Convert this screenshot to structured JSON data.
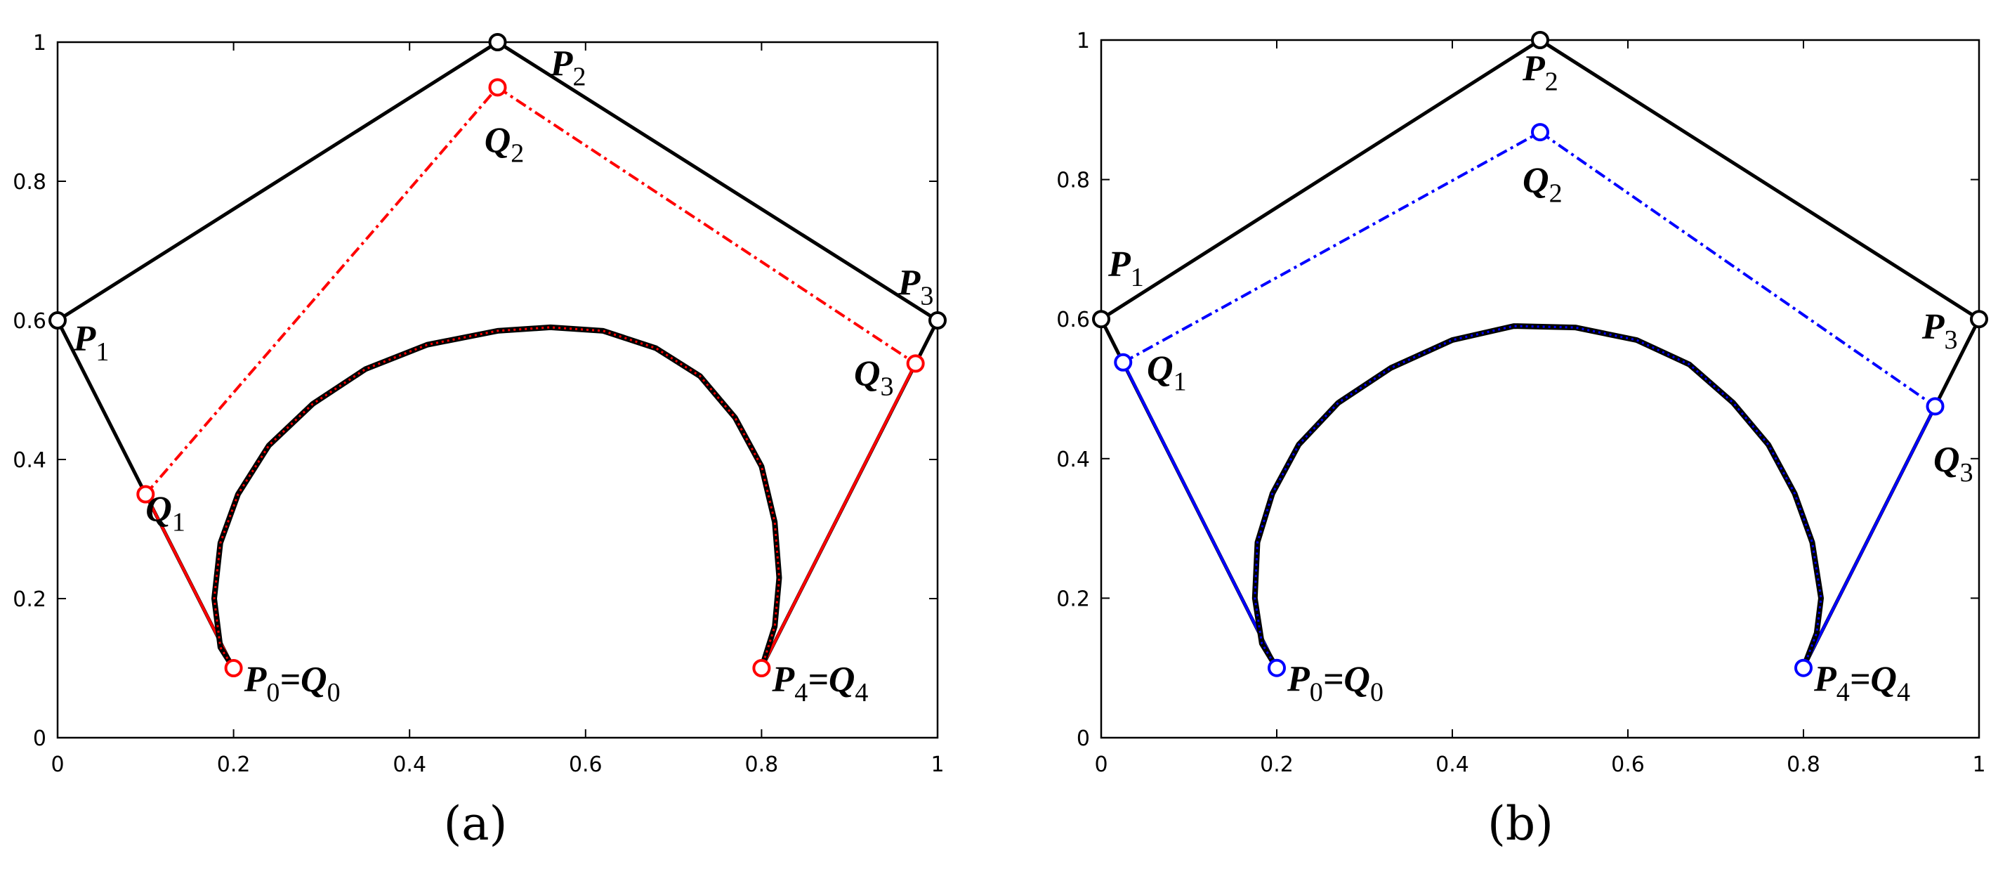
{
  "chart_data": [
    {
      "type": "line",
      "caption": "(a)",
      "xlim": [
        0,
        1
      ],
      "ylim": [
        0,
        1
      ],
      "x_ticks": [
        "0",
        "0.2",
        "0.4",
        "0.6",
        "0.8",
        "1"
      ],
      "y_ticks": [
        "0",
        "0.2",
        "0.4",
        "0.6",
        "0.8",
        "1"
      ],
      "grid": false,
      "accent_color": "#ff0000",
      "control_polygon_P": {
        "color": "#000000",
        "points": [
          {
            "name": "P0",
            "x": 0.2,
            "y": 0.1
          },
          {
            "name": "P1",
            "x": 0.0,
            "y": 0.6
          },
          {
            "name": "P2",
            "x": 0.5,
            "y": 1.0
          },
          {
            "name": "P3",
            "x": 1.0,
            "y": 0.6
          },
          {
            "name": "P4",
            "x": 0.8,
            "y": 0.1
          }
        ]
      },
      "control_polygon_Q": {
        "color": "#ff0000",
        "points": [
          {
            "name": "Q0",
            "x": 0.2,
            "y": 0.1
          },
          {
            "name": "Q1",
            "x": 0.1,
            "y": 0.35
          },
          {
            "name": "Q2",
            "x": 0.5,
            "y": 0.935
          },
          {
            "name": "Q3",
            "x": 0.975,
            "y": 0.538
          },
          {
            "name": "Q4",
            "x": 0.8,
            "y": 0.1
          }
        ]
      },
      "curve": {
        "color": "#000000",
        "overlay_color": "#ff0000",
        "points": [
          [
            0.2,
            0.1
          ],
          [
            0.185,
            0.13
          ],
          [
            0.178,
            0.2
          ],
          [
            0.185,
            0.28
          ],
          [
            0.205,
            0.35
          ],
          [
            0.24,
            0.42
          ],
          [
            0.29,
            0.48
          ],
          [
            0.35,
            0.53
          ],
          [
            0.42,
            0.565
          ],
          [
            0.5,
            0.585
          ],
          [
            0.56,
            0.59
          ],
          [
            0.62,
            0.585
          ],
          [
            0.68,
            0.56
          ],
          [
            0.73,
            0.52
          ],
          [
            0.77,
            0.46
          ],
          [
            0.8,
            0.39
          ],
          [
            0.815,
            0.31
          ],
          [
            0.82,
            0.23
          ],
          [
            0.815,
            0.16
          ],
          [
            0.8,
            0.1
          ]
        ]
      },
      "labels": [
        {
          "main": "P",
          "sub": "0",
          "tail": "=Q",
          "tail_sub": "0",
          "x": 0.212,
          "y": 0.085
        },
        {
          "main": "P",
          "sub": "1",
          "x": 0.018,
          "y": 0.575
        },
        {
          "main": "P",
          "sub": "2",
          "x": 0.56,
          "y": 0.97
        },
        {
          "main": "P",
          "sub": "3",
          "x": 0.955,
          "y": 0.655
        },
        {
          "main": "P",
          "sub": "4",
          "tail": "=Q",
          "tail_sub": "4",
          "x": 0.812,
          "y": 0.085
        },
        {
          "main": "Q",
          "sub": "1",
          "x": 0.1,
          "y": 0.33
        },
        {
          "main": "Q",
          "sub": "2",
          "x": 0.485,
          "y": 0.86
        },
        {
          "main": "Q",
          "sub": "3",
          "x": 0.905,
          "y": 0.525
        }
      ]
    },
    {
      "type": "line",
      "caption": "(b)",
      "xlim": [
        0,
        1
      ],
      "ylim": [
        0,
        1
      ],
      "x_ticks": [
        "0",
        "0.2",
        "0.4",
        "0.6",
        "0.8",
        "1"
      ],
      "y_ticks": [
        "0",
        "0.2",
        "0.4",
        "0.6",
        "0.8",
        "1"
      ],
      "grid": false,
      "accent_color": "#0000ff",
      "control_polygon_P": {
        "color": "#000000",
        "points": [
          {
            "name": "P0",
            "x": 0.2,
            "y": 0.1
          },
          {
            "name": "P1",
            "x": 0.0,
            "y": 0.6
          },
          {
            "name": "P2",
            "x": 0.5,
            "y": 1.0
          },
          {
            "name": "P3",
            "x": 1.0,
            "y": 0.6
          },
          {
            "name": "P4",
            "x": 0.8,
            "y": 0.1
          }
        ]
      },
      "control_polygon_Q": {
        "color": "#0000ff",
        "points": [
          {
            "name": "Q0",
            "x": 0.2,
            "y": 0.1
          },
          {
            "name": "Q1",
            "x": 0.025,
            "y": 0.538
          },
          {
            "name": "Q2",
            "x": 0.5,
            "y": 0.868
          },
          {
            "name": "Q3",
            "x": 0.95,
            "y": 0.475
          },
          {
            "name": "Q4",
            "x": 0.8,
            "y": 0.1
          }
        ]
      },
      "curve": {
        "color": "#000000",
        "overlay_color": "#0000ff",
        "points": [
          [
            0.2,
            0.1
          ],
          [
            0.183,
            0.135
          ],
          [
            0.175,
            0.2
          ],
          [
            0.178,
            0.28
          ],
          [
            0.195,
            0.35
          ],
          [
            0.225,
            0.42
          ],
          [
            0.27,
            0.48
          ],
          [
            0.33,
            0.53
          ],
          [
            0.4,
            0.57
          ],
          [
            0.47,
            0.59
          ],
          [
            0.54,
            0.588
          ],
          [
            0.61,
            0.57
          ],
          [
            0.67,
            0.535
          ],
          [
            0.72,
            0.48
          ],
          [
            0.76,
            0.42
          ],
          [
            0.79,
            0.35
          ],
          [
            0.81,
            0.28
          ],
          [
            0.82,
            0.2
          ],
          [
            0.815,
            0.15
          ],
          [
            0.8,
            0.1
          ]
        ]
      },
      "labels": [
        {
          "main": "P",
          "sub": "0",
          "tail": "=Q",
          "tail_sub": "0",
          "x": 0.212,
          "y": 0.085
        },
        {
          "main": "P",
          "sub": "1",
          "x": 0.008,
          "y": 0.68
        },
        {
          "main": "P",
          "sub": "2",
          "x": 0.48,
          "y": 0.96
        },
        {
          "main": "P",
          "sub": "3",
          "x": 0.935,
          "y": 0.59
        },
        {
          "main": "P",
          "sub": "4",
          "tail": "=Q",
          "tail_sub": "4",
          "x": 0.812,
          "y": 0.085
        },
        {
          "main": "Q",
          "sub": "1",
          "x": 0.052,
          "y": 0.53
        },
        {
          "main": "Q",
          "sub": "2",
          "x": 0.48,
          "y": 0.8
        },
        {
          "main": "Q",
          "sub": "3",
          "x": 0.948,
          "y": 0.4
        }
      ]
    }
  ]
}
